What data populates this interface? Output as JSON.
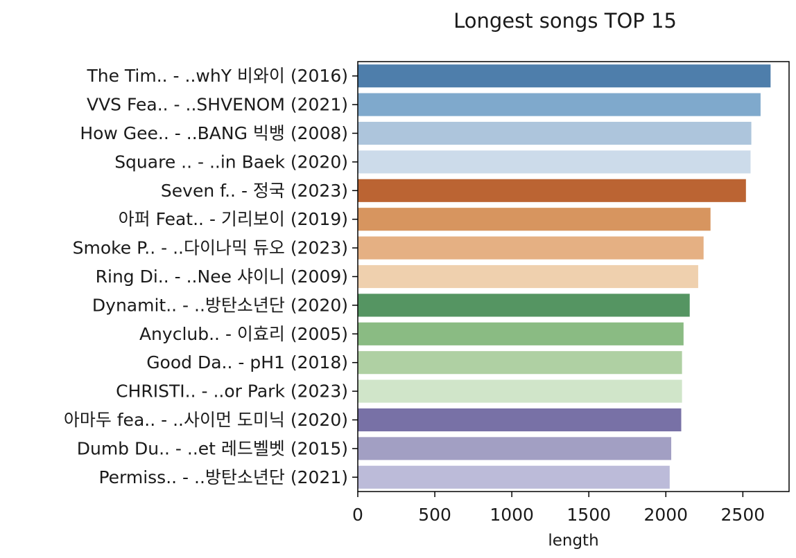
{
  "chart_data": {
    "type": "bar",
    "orientation": "horizontal",
    "title": "Longest songs TOP 15",
    "xlabel": "length",
    "ylabel": "",
    "xlim": [
      0,
      2800
    ],
    "xticks": [
      "0",
      "500",
      "1000",
      "1500",
      "2000",
      "2500"
    ],
    "grid": false,
    "categories": [
      "The Tim.. - ..whY 비와이 (2016)",
      "VVS Fea.. - ..SHVENOM (2021)",
      "How Gee.. - ..BANG 빅뱅 (2008)",
      "Square .. - ..in Baek (2020)",
      "Seven f.. - 정국 (2023)",
      "아퍼 Feat.. - 기리보이 (2019)",
      "Smoke P.. - ..다이나믹 듀오 (2023)",
      "Ring Di.. - ..Nee 샤이니 (2009)",
      "Dynamit.. - ..방탄소년단 (2020)",
      "Anyclub.. - 이효리 (2005)",
      "Good Da.. - pH1 (2018)",
      "CHRISTI.. - ..or Park (2023)",
      "아마두 fea.. - ..사이먼 도미닉 (2020)",
      "Dumb Du.. - ..et 레드벨벳 (2015)",
      "Permiss.. - ..방탄소년단 (2021)"
    ],
    "values": [
      2680,
      2615,
      2555,
      2550,
      2520,
      2290,
      2245,
      2210,
      2155,
      2115,
      2105,
      2105,
      2100,
      2035,
      2025
    ],
    "colors": [
      "#4e7eab",
      "#7fa9cc",
      "#adc5dc",
      "#ccdbea",
      "#bb6433",
      "#d7955f",
      "#e5b083",
      "#efd0ae",
      "#559562",
      "#8abb83",
      "#afd0a3",
      "#d0e5c9",
      "#7871a6",
      "#a29fc3",
      "#bcbbd9"
    ]
  }
}
